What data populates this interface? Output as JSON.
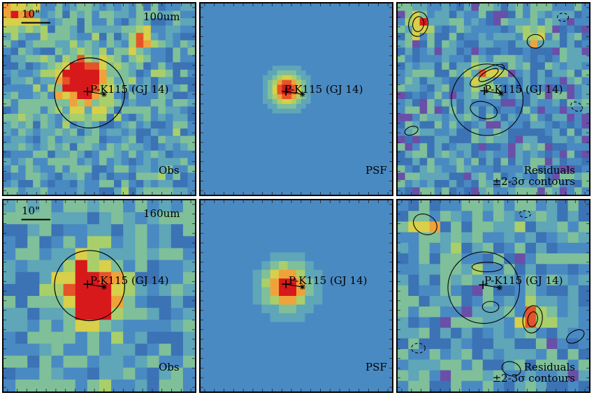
{
  "figure": {
    "target_label": "P-K115 (GJ 14)",
    "palette": [
      "#5b2a86",
      "#6a4fa8",
      "#3b73b5",
      "#4a8ac2",
      "#5ea6b8",
      "#7fbf9a",
      "#a9cf6b",
      "#d8cf4a",
      "#f0a23a",
      "#e55428",
      "#d7191c"
    ],
    "rows": [
      {
        "band_label": "100um",
        "scale_label": "10\"",
        "panels": [
          {
            "id": "obs",
            "caption": "Obs",
            "seed": 11,
            "sources": [
              [
                0.42,
                0.42,
                0.1,
                1.0
              ],
              [
                0.38,
                0.38,
                0.05,
                0.8
              ],
              [
                0.72,
                0.2,
                0.05,
                0.6
              ],
              [
                0.08,
                0.05,
                0.07,
                0.8
              ]
            ]
          },
          {
            "id": "psf",
            "caption": "PSF"
          },
          {
            "id": "res",
            "caption": "Residuals",
            "caption2": "±2-3σ contours",
            "seed": 23
          }
        ]
      },
      {
        "band_label": "160um",
        "scale_label": "10\"",
        "panels": [
          {
            "id": "obs",
            "caption": "Obs",
            "seed": 37,
            "sources": [
              [
                0.44,
                0.45,
                0.11,
                1.0
              ],
              [
                0.5,
                0.55,
                0.08,
                0.7
              ]
            ]
          },
          {
            "id": "psf",
            "caption": "PSF"
          },
          {
            "id": "res",
            "caption": "Residuals",
            "caption2": "±2-3σ contours",
            "seed": 51
          }
        ]
      }
    ],
    "psf_ticks_top": [
      "30",
      "20",
      "10"
    ],
    "psf_ticks_bottom": [
      "20",
      "15",
      "10",
      "5"
    ]
  }
}
